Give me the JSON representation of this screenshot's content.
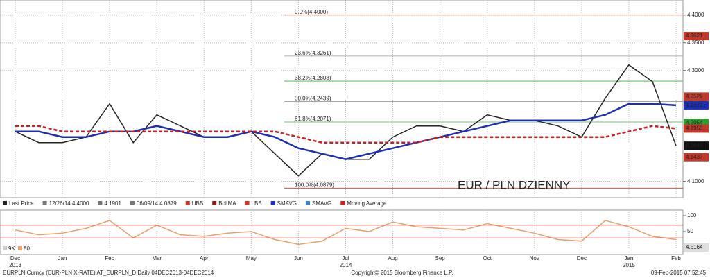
{
  "chart_data": [
    {
      "type": "line",
      "categories": [
        "Dec",
        null,
        "Jan",
        null,
        "Feb",
        null,
        "Mar",
        null,
        "Apr",
        null,
        "May",
        null,
        "Jun",
        null,
        "Jul",
        null,
        "Aug",
        null,
        "Sep",
        null,
        "Oct",
        null,
        "Nov",
        null,
        "Dec",
        null,
        "Jan",
        null,
        "Feb"
      ],
      "year_labels": [
        "2013",
        "2014",
        "2015"
      ],
      "series": [
        {
          "name": "Last Price",
          "color": "#222222",
          "values": [
            4.19,
            4.17,
            4.17,
            4.18,
            4.24,
            4.17,
            4.22,
            4.2,
            4.18,
            4.18,
            4.19,
            4.15,
            4.11,
            4.15,
            4.14,
            4.14,
            4.18,
            4.2,
            4.2,
            4.19,
            4.22,
            4.21,
            4.21,
            4.2,
            4.18,
            4.25,
            4.31,
            4.28,
            4.1644
          ]
        },
        {
          "name": "SMAVG",
          "color": "#1f2fb5",
          "values": [
            4.19,
            4.19,
            4.18,
            4.18,
            4.19,
            4.19,
            4.2,
            4.19,
            4.18,
            4.18,
            4.19,
            4.18,
            4.16,
            4.15,
            4.14,
            4.15,
            4.16,
            4.17,
            4.18,
            4.19,
            4.2,
            4.21,
            4.21,
            4.21,
            4.21,
            4.22,
            4.24,
            4.24,
            4.2372
          ]
        },
        {
          "name": "Moving Average",
          "color": "#cc1f1f",
          "values": [
            4.2,
            4.2,
            4.19,
            4.19,
            4.19,
            4.19,
            4.19,
            4.19,
            4.19,
            4.19,
            4.19,
            4.19,
            4.18,
            4.17,
            4.17,
            4.17,
            4.17,
            4.17,
            4.18,
            4.18,
            4.18,
            4.18,
            4.18,
            4.18,
            4.18,
            4.18,
            4.19,
            4.2,
            4.1953
          ]
        }
      ],
      "ylim": [
        4.4272,
        4.0708
      ],
      "yticks": [
        {
          "value": 4.4,
          "label": "4.4000"
        },
        {
          "value": 4.35,
          "label": "4.3500"
        },
        {
          "value": 4.3,
          "label": "4.3000"
        },
        {
          "value": 4.1,
          "label": "4.1000"
        }
      ],
      "last_values": [
        {
          "value": 4.3621,
          "color": "#c0392b"
        },
        {
          "value": 4.2529,
          "color": "#c0392b"
        },
        {
          "value": 4.2372,
          "color": "#1f2fb5"
        },
        {
          "value": 4.2054,
          "color": "#2ca02c"
        },
        {
          "value": 4.1953,
          "color": "#c0392b"
        },
        {
          "value": 4.1644,
          "color": "#111111"
        },
        {
          "value": 4.1437,
          "color": "#c0392b"
        }
      ],
      "fib_levels": [
        {
          "label": "0.0%(4.4000)",
          "value": 4.4
        },
        {
          "label": "23.6%(4.3261)",
          "value": 4.3261
        },
        {
          "label": "38.2%(4.2808)",
          "value": 4.2808
        },
        {
          "label": "50.0%(4.2439)",
          "value": 4.2439
        },
        {
          "label": "61.8%(4.2071)",
          "value": 4.2071
        },
        {
          "label": "100.0%(4.0879)",
          "value": 4.0879
        }
      ],
      "annotation": "EUR / PLN DZIENNY",
      "legend_stats": [
        "12/26/14 4.4000",
        "4.1901",
        "06/09/14 4.0879"
      ],
      "legend_extra": [
        "UBB",
        "BollMA",
        "LBB",
        "SMAVG",
        "SMAVG"
      ],
      "grid": true
    },
    {
      "type": "line",
      "series": [
        {
          "color": "#e8a06a",
          "values": [
            55,
            40,
            45,
            60,
            85,
            30,
            70,
            40,
            35,
            45,
            50,
            25,
            10,
            20,
            60,
            50,
            80,
            65,
            60,
            55,
            75,
            60,
            45,
            25,
            20,
            85,
            65,
            35,
            25
          ]
        }
      ],
      "ylim": [
        0,
        100
      ],
      "yticks": [
        100,
        50
      ],
      "levels": [
        70,
        30
      ],
      "last_label": "4.5164",
      "legend": [
        "9K",
        "80"
      ]
    }
  ],
  "footer": {
    "left": "EURPLN Curncy (EUR-PLN X-RATE) AT_EURPLN_D Daily 04DEC2013-04DEC2014",
    "center": "Copyright© 2015 Bloomberg Finance L.P.",
    "right": "09-Feb-2015 07:52:45"
  }
}
